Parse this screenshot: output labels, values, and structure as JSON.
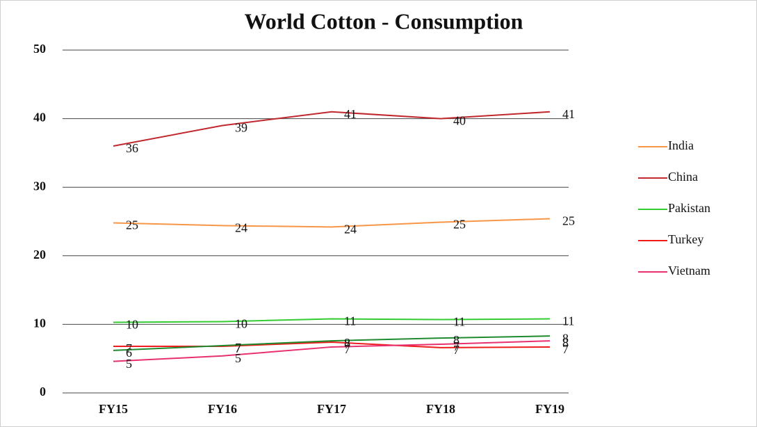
{
  "chart_data": {
    "type": "line",
    "title": "World Cotton - Consumption",
    "categories": [
      "FY15",
      "FY16",
      "FY17",
      "FY18",
      "FY19"
    ],
    "series": [
      {
        "name": "India",
        "color": "#f79646",
        "values": [
          24.8,
          24.4,
          24.2,
          24.9,
          25.4
        ],
        "value_labels": [
          "25",
          "24",
          "24",
          "25",
          "25"
        ]
      },
      {
        "name": "China",
        "color": "#c0282d",
        "values": [
          36,
          39,
          41,
          40,
          41
        ]
      },
      {
        "name": "Pakistan",
        "color": "#33cc33",
        "values": [
          10.3,
          10.4,
          10.8,
          10.7,
          10.8
        ],
        "value_labels": [
          "10",
          "10",
          "11",
          "11",
          "11"
        ]
      },
      {
        "name": "Turkey",
        "color": "#ee1c1c",
        "values": [
          6.8,
          6.8,
          7.4,
          6.6,
          6.7
        ],
        "value_labels": [
          "7",
          "7",
          "7",
          "7",
          "7"
        ]
      },
      {
        "name": "Vietnam",
        "color": "#e8306e",
        "values": [
          4.6,
          5.4,
          6.7,
          7.1,
          7.6
        ],
        "value_labels": [
          "5",
          "5",
          "7",
          "7",
          "8"
        ]
      },
      {
        "color": "#1f8a2e",
        "values": [
          6.2,
          6.9,
          7.6,
          8.0,
          8.3
        ],
        "value_labels": [
          "6",
          "7",
          "8",
          "8",
          "8"
        ]
      }
    ],
    "ylim": [
      0,
      50
    ],
    "yticks": [
      0,
      10,
      20,
      30,
      40,
      50
    ],
    "grid": true,
    "legend": "right"
  }
}
